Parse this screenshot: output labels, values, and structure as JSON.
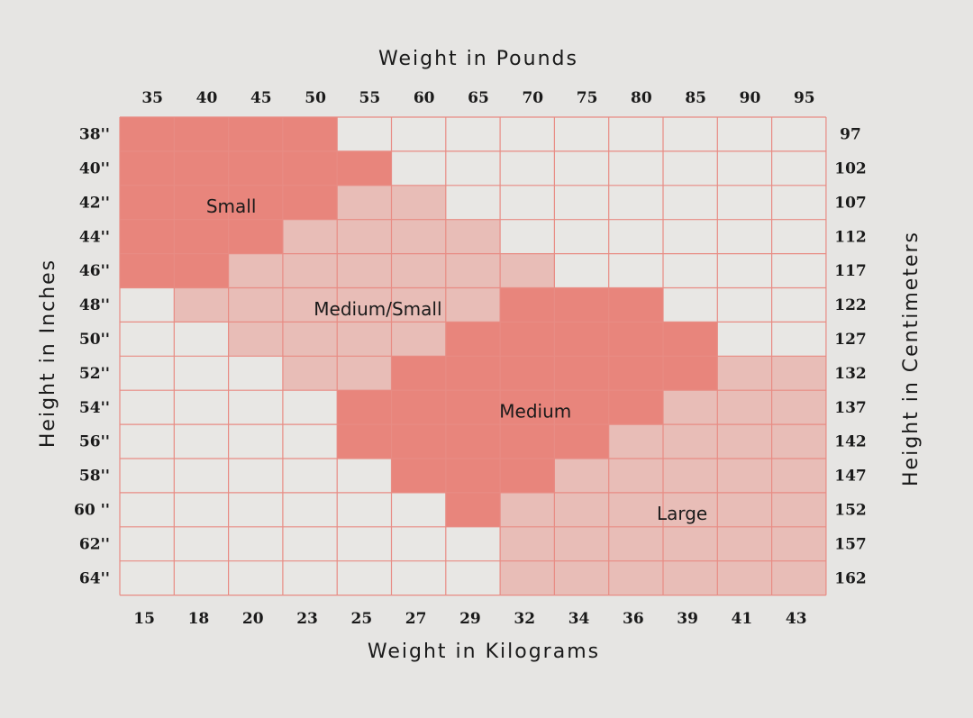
{
  "chart_data": {
    "type": "heatmap",
    "title_top": "Weight in Pounds",
    "title_bottom": "Weight in Kilograms",
    "title_left": "Height in Inches",
    "title_right": "Height in Centimeters",
    "x_top_ticks": [
      "35",
      "40",
      "45",
      "50",
      "55",
      "60",
      "65",
      "70",
      "75",
      "80",
      "85",
      "90",
      "95"
    ],
    "x_bottom_ticks": [
      "15",
      "18",
      "20",
      "23",
      "25",
      "27",
      "29",
      "32",
      "34",
      "36",
      "39",
      "41",
      "43"
    ],
    "y_left_ticks": [
      "38''",
      "40''",
      "42''",
      "44''",
      "46''",
      "48''",
      "50''",
      "52''",
      "54''",
      "56''",
      "58''",
      "60 ''",
      "62''",
      "64''"
    ],
    "y_right_ticks": [
      "97",
      "102",
      "107",
      "112",
      "117",
      "122",
      "127",
      "132",
      "137",
      "142",
      "147",
      "152",
      "157",
      "162"
    ],
    "categories": [
      "Small",
      "Medium/Small",
      "Medium",
      "Large"
    ],
    "category_colors": {
      "Small": "#e8857c",
      "Medium/Small": "#e8bdb7",
      "Medium": "#e8857c",
      "Large": "#e8bdb7",
      "none": "#e8e7e4"
    },
    "grid_line_color": "#e88c84",
    "cells": [
      [
        "S",
        "S",
        "S",
        "S",
        "-",
        "-",
        "-",
        "-",
        "-",
        "-",
        "-",
        "-",
        "-"
      ],
      [
        "S",
        "S",
        "S",
        "S",
        "S",
        "-",
        "-",
        "-",
        "-",
        "-",
        "-",
        "-",
        "-"
      ],
      [
        "S",
        "S",
        "S",
        "S",
        "MS",
        "MS",
        "-",
        "-",
        "-",
        "-",
        "-",
        "-",
        "-"
      ],
      [
        "S",
        "S",
        "S",
        "MS",
        "MS",
        "MS",
        "MS",
        "-",
        "-",
        "-",
        "-",
        "-",
        "-"
      ],
      [
        "S",
        "S",
        "MS",
        "MS",
        "MS",
        "MS",
        "MS",
        "MS",
        "-",
        "-",
        "-",
        "-",
        "-"
      ],
      [
        "-",
        "MS",
        "MS",
        "MS",
        "MS",
        "MS",
        "MS",
        "M",
        "M",
        "M",
        "-",
        "-",
        "-"
      ],
      [
        "-",
        "-",
        "MS",
        "MS",
        "MS",
        "MS",
        "M",
        "M",
        "M",
        "M",
        "M",
        "-",
        "-"
      ],
      [
        "-",
        "-",
        "-",
        "MS",
        "MS",
        "M",
        "M",
        "M",
        "M",
        "M",
        "M",
        "L",
        "L"
      ],
      [
        "-",
        "-",
        "-",
        "-",
        "M",
        "M",
        "M",
        "M",
        "M",
        "M",
        "L",
        "L",
        "L"
      ],
      [
        "-",
        "-",
        "-",
        "-",
        "M",
        "M",
        "M",
        "M",
        "M",
        "L",
        "L",
        "L",
        "L"
      ],
      [
        "-",
        "-",
        "-",
        "-",
        "-",
        "M",
        "M",
        "M",
        "L",
        "L",
        "L",
        "L",
        "L"
      ],
      [
        "-",
        "-",
        "-",
        "-",
        "-",
        "-",
        "M",
        "L",
        "L",
        "L",
        "L",
        "L",
        "L"
      ],
      [
        "-",
        "-",
        "-",
        "-",
        "-",
        "-",
        "-",
        "L",
        "L",
        "L",
        "L",
        "L",
        "L"
      ],
      [
        "-",
        "-",
        "-",
        "-",
        "-",
        "-",
        "-",
        "L",
        "L",
        "L",
        "L",
        "L",
        "L"
      ]
    ],
    "region_labels": [
      {
        "text": "Small",
        "col": 2,
        "row": 2
      },
      {
        "text": "Medium/Small",
        "col": 4.7,
        "row": 5
      },
      {
        "text": "Medium",
        "col": 7.6,
        "row": 8
      },
      {
        "text": "Large",
        "col": 10.3,
        "row": 11
      }
    ]
  }
}
